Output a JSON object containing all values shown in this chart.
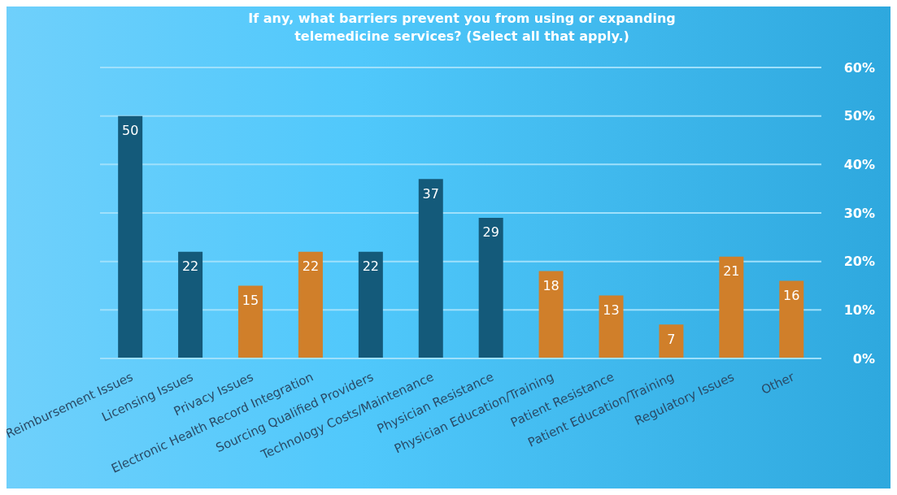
{
  "chart_data": {
    "type": "bar",
    "title": "If any, what barriers prevent you from using or expanding telemedicine services? (Select all that apply.)",
    "categories": [
      "Reimbursement Issues",
      "Licensing Issues",
      "Privacy Issues",
      "Electronic Health Record Integration",
      "Sourcing Qualified Providers",
      "Technology Costs/Maintenance",
      "Physician Resistance",
      "Physician Education/Training",
      "Patient Resistance",
      "Patient Education/Training",
      "Regulatory Issues",
      "Other"
    ],
    "values": [
      50,
      22,
      15,
      22,
      22,
      37,
      29,
      18,
      13,
      7,
      21,
      16
    ],
    "colors": [
      "#145a7a",
      "#145a7a",
      "#d07f2a",
      "#d07f2a",
      "#145a7a",
      "#145a7a",
      "#145a7a",
      "#d07f2a",
      "#d07f2a",
      "#d07f2a",
      "#d07f2a",
      "#d07f2a"
    ],
    "ylim": [
      0,
      60
    ],
    "yticks": [
      {
        "value": 0,
        "label": "0%"
      },
      {
        "value": 10,
        "label": "10%"
      },
      {
        "value": 20,
        "label": "20%"
      },
      {
        "value": 30,
        "label": "30%"
      },
      {
        "value": 40,
        "label": "40%"
      },
      {
        "value": 50,
        "label": "50%"
      },
      {
        "value": 60,
        "label": "60%"
      }
    ],
    "grid": "y",
    "data_labels": true,
    "legend": false
  }
}
